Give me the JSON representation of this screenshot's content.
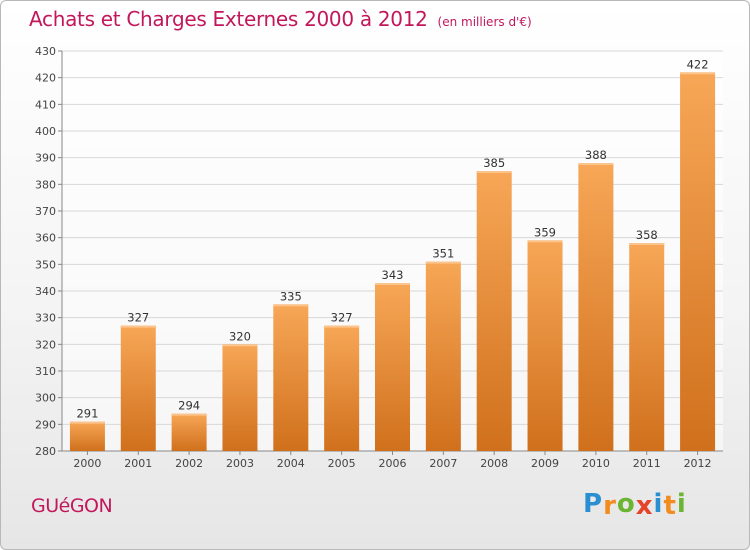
{
  "title": "Achats et Charges Externes 2000 à 2012",
  "unit_note": "(en milliers d'€)",
  "town": "GUéGON",
  "logo": {
    "letters": [
      {
        "ch": "P",
        "color": "#2a8fd0"
      },
      {
        "ch": "r",
        "color": "#f28c1e"
      },
      {
        "ch": "o",
        "color": "#6cb533"
      },
      {
        "ch": "x",
        "color": "#e5432a"
      },
      {
        "ch": "i",
        "color": "#2a8fd0"
      },
      {
        "ch": "t",
        "color": "#f28c1e"
      },
      {
        "ch": "i",
        "color": "#6cb533"
      }
    ]
  },
  "colors": {
    "accent": "#c2185b",
    "bar_top": "#f7a757",
    "bar_bottom": "#d0701c",
    "grid": "#d8d8d8",
    "axis_text": "#444444"
  },
  "chart_data": {
    "type": "bar",
    "title": "Achats et Charges Externes 2000 à 2012",
    "xlabel": "",
    "ylabel": "",
    "categories": [
      "2000",
      "2001",
      "2002",
      "2003",
      "2004",
      "2005",
      "2006",
      "2007",
      "2008",
      "2009",
      "2010",
      "2011",
      "2012"
    ],
    "values": [
      291,
      327,
      294,
      320,
      335,
      327,
      343,
      351,
      385,
      359,
      388,
      358,
      422
    ],
    "ylim": [
      280,
      430
    ],
    "yticks": [
      280,
      290,
      300,
      310,
      320,
      330,
      340,
      350,
      360,
      370,
      380,
      390,
      400,
      410,
      420,
      430
    ],
    "grid": true,
    "data_labels": true
  }
}
